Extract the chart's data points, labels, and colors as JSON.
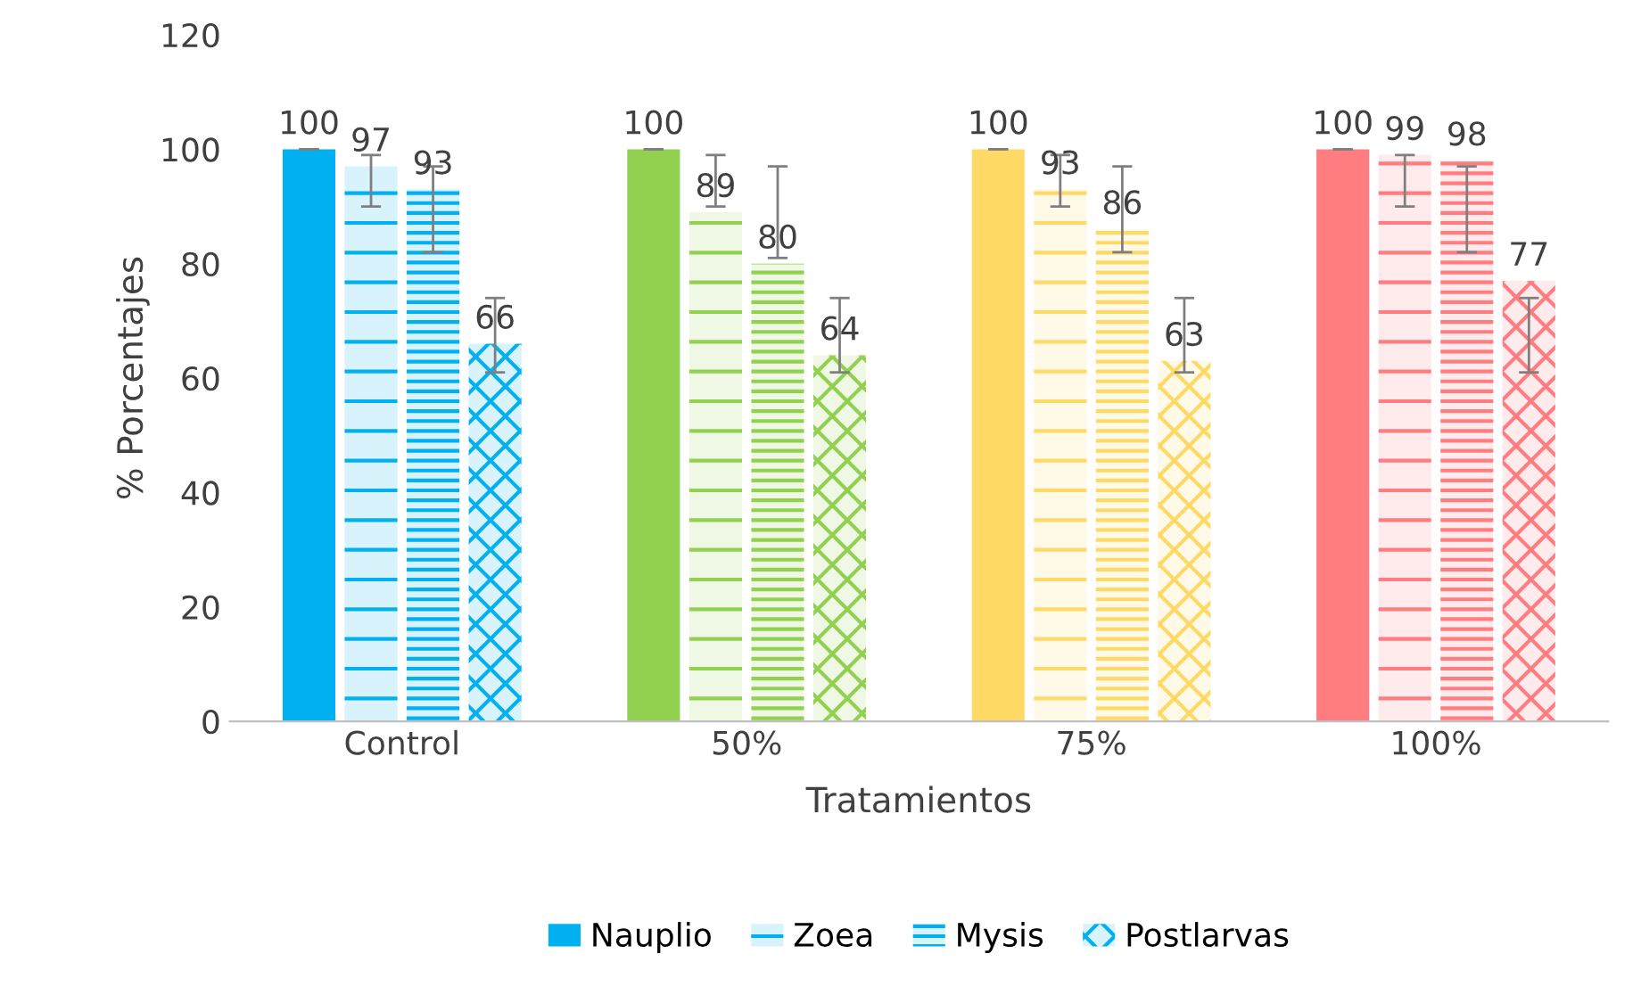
{
  "chart_data": {
    "type": "bar",
    "xlabel": "Tratamientos",
    "ylabel": "% Porcentajes",
    "categories": [
      "Control",
      "50%",
      "75%",
      "100%"
    ],
    "series": [
      {
        "name": "Nauplio",
        "colors": [
          "#00b0f0",
          "#92d050",
          "#ffd966",
          "#ff7c80"
        ],
        "values": [
          100,
          100,
          100,
          100
        ],
        "errors": [
          [
            100,
            100
          ],
          [
            100,
            100
          ],
          [
            100,
            100
          ],
          [
            100,
            100
          ]
        ]
      },
      {
        "name": "Zoea",
        "colors": [
          "#00b0f0",
          "#92d050",
          "#ffd966",
          "#ff7c80"
        ],
        "values": [
          97,
          89,
          93,
          99
        ],
        "errors": [
          [
            90,
            99
          ],
          [
            90,
            99
          ],
          [
            90,
            99
          ],
          [
            90,
            99
          ]
        ]
      },
      {
        "name": "Mysis",
        "colors": [
          "#00b0f0",
          "#92d050",
          "#ffd966",
          "#ff7c80"
        ],
        "values": [
          93,
          80,
          86,
          98
        ],
        "errors": [
          [
            82,
            97
          ],
          [
            81,
            97
          ],
          [
            82,
            97
          ],
          [
            82,
            97
          ]
        ]
      },
      {
        "name": "Postlarvas",
        "colors": [
          "#00b0f0",
          "#92d050",
          "#ffd966",
          "#ff7c80"
        ],
        "values": [
          66,
          64,
          63,
          77
        ],
        "errors": [
          [
            61,
            74
          ],
          [
            61,
            74
          ],
          [
            61,
            74
          ],
          [
            61,
            74
          ]
        ]
      }
    ],
    "ylim": [
      0,
      120
    ],
    "yticks": [
      0,
      20,
      40,
      60,
      80,
      100,
      120
    ],
    "data_labels": true,
    "grid": false,
    "legend": "bottom"
  }
}
